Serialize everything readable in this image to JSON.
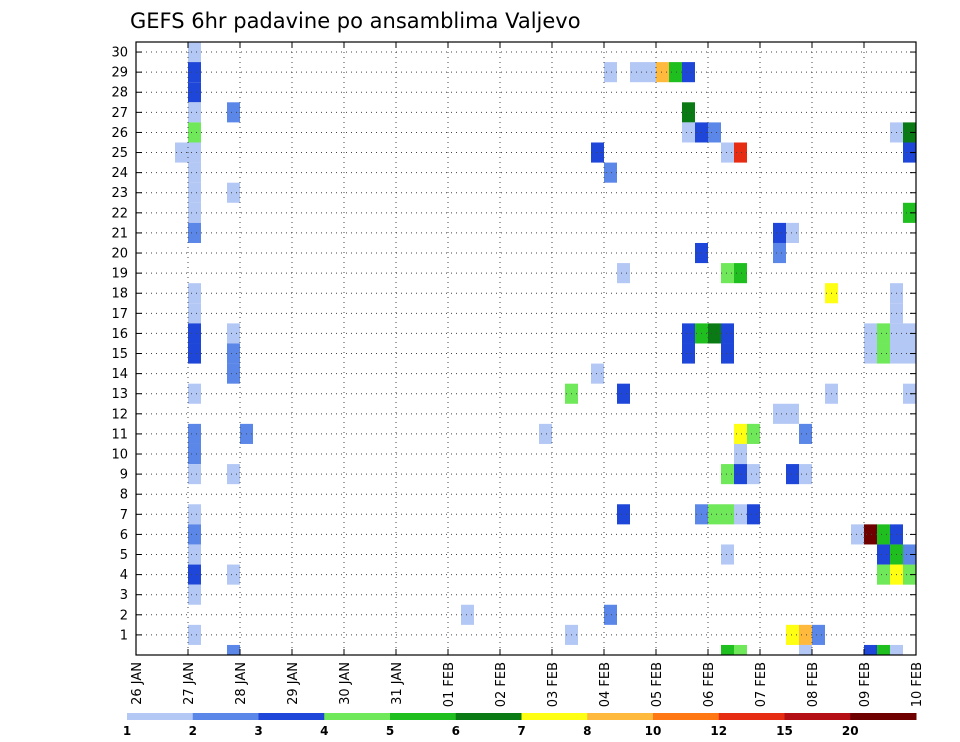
{
  "chart_data": {
    "type": "heatmap",
    "title": "GEFS 6hr padavine po ansamblima Valjevo",
    "xlabel": "",
    "ylabel": "",
    "y_ticks": [
      1,
      2,
      3,
      4,
      5,
      6,
      7,
      8,
      9,
      10,
      11,
      12,
      13,
      14,
      15,
      16,
      17,
      18,
      19,
      20,
      21,
      22,
      23,
      24,
      25,
      26,
      27,
      28,
      29,
      30
    ],
    "ylim": [
      0,
      30
    ],
    "x_tick_labels": [
      "26 JAN",
      "27 JAN",
      "28 JAN",
      "29 JAN",
      "30 JAN",
      "31 JAN",
      "01 FEB",
      "02 FEB",
      "03 FEB",
      "04 FEB",
      "05 FEB",
      "06 FEB",
      "07 FEB",
      "08 FEB",
      "09 FEB",
      "10 FEB"
    ],
    "x_unit": "6-hour step",
    "xlim": [
      0,
      60
    ],
    "grid": true,
    "legend_placement": "bottom",
    "color_levels": [
      {
        "label": "1",
        "color": "#b4c8f5"
      },
      {
        "label": "2",
        "color": "#5b87e8"
      },
      {
        "label": "3",
        "color": "#1e46d8"
      },
      {
        "label": "4",
        "color": "#6fe85a"
      },
      {
        "label": "5",
        "color": "#1fbf1f"
      },
      {
        "label": "6",
        "color": "#0a7a14"
      },
      {
        "label": "7",
        "color": "#ffff14"
      },
      {
        "label": "8",
        "color": "#ffb93c"
      },
      {
        "label": "10",
        "color": "#ff7814"
      },
      {
        "label": "12",
        "color": "#e62d14"
      },
      {
        "label": "15",
        "color": "#b40f14"
      },
      {
        "label": "20",
        "color": "#6e0000"
      }
    ],
    "legend_tick_labels": [
      "1",
      "2",
      "3",
      "4",
      "5",
      "6",
      "7",
      "8",
      "10",
      "12",
      "15",
      "20"
    ],
    "cells": [
      [
        4,
        30,
        0
      ],
      [
        4,
        29,
        2
      ],
      [
        4,
        28,
        2
      ],
      [
        4,
        27,
        0
      ],
      [
        4,
        26,
        3
      ],
      [
        4,
        25,
        0
      ],
      [
        3,
        25,
        0
      ],
      [
        4,
        24,
        0
      ],
      [
        4,
        23,
        0
      ],
      [
        4,
        22,
        0
      ],
      [
        4,
        21,
        1
      ],
      [
        4,
        18,
        0
      ],
      [
        4,
        17,
        0
      ],
      [
        4,
        16,
        2
      ],
      [
        4,
        15,
        2
      ],
      [
        4,
        13,
        0
      ],
      [
        4,
        11,
        1
      ],
      [
        4,
        10,
        1
      ],
      [
        4,
        9,
        0
      ],
      [
        4,
        7,
        0
      ],
      [
        4,
        6,
        1
      ],
      [
        4,
        5,
        0
      ],
      [
        4,
        4,
        2
      ],
      [
        4,
        3,
        0
      ],
      [
        4,
        1,
        0
      ],
      [
        7,
        27,
        1
      ],
      [
        7,
        23,
        0
      ],
      [
        7,
        16,
        0
      ],
      [
        7,
        15,
        1
      ],
      [
        7,
        14,
        1
      ],
      [
        7,
        9,
        0
      ],
      [
        7,
        4,
        0
      ],
      [
        7,
        0,
        1
      ],
      [
        8,
        11,
        1
      ],
      [
        25,
        2,
        0
      ],
      [
        31,
        11,
        0
      ],
      [
        33,
        13,
        3
      ],
      [
        33,
        1,
        0
      ],
      [
        35,
        14,
        0
      ],
      [
        35,
        25,
        2
      ],
      [
        36,
        29,
        0
      ],
      [
        36,
        24,
        1
      ],
      [
        36,
        2,
        1
      ],
      [
        37,
        19,
        0
      ],
      [
        37,
        13,
        2
      ],
      [
        37,
        7,
        2
      ],
      [
        38,
        29,
        0
      ],
      [
        39,
        29,
        0
      ],
      [
        40,
        29,
        7
      ],
      [
        41,
        29,
        4
      ],
      [
        42,
        29,
        2
      ],
      [
        42,
        27,
        5
      ],
      [
        42,
        26,
        0
      ],
      [
        42,
        16,
        2
      ],
      [
        42,
        15,
        2
      ],
      [
        43,
        26,
        2
      ],
      [
        44,
        26,
        1
      ],
      [
        43,
        16,
        4
      ],
      [
        44,
        16,
        5
      ],
      [
        45,
        16,
        2
      ],
      [
        45,
        15,
        2
      ],
      [
        43,
        20,
        2
      ],
      [
        43,
        7,
        1
      ],
      [
        44,
        7,
        3
      ],
      [
        45,
        25,
        0
      ],
      [
        46,
        25,
        9
      ],
      [
        45,
        19,
        3
      ],
      [
        46,
        19,
        4
      ],
      [
        46,
        11,
        6
      ],
      [
        47,
        11,
        3
      ],
      [
        46,
        10,
        0
      ],
      [
        45,
        9,
        3
      ],
      [
        46,
        9,
        2
      ],
      [
        47,
        9,
        0
      ],
      [
        45,
        7,
        3
      ],
      [
        46,
        7,
        0
      ],
      [
        47,
        7,
        2
      ],
      [
        45,
        5,
        0
      ],
      [
        45,
        0,
        4
      ],
      [
        46,
        0,
        3
      ],
      [
        49,
        21,
        2
      ],
      [
        50,
        21,
        0
      ],
      [
        49,
        20,
        1
      ],
      [
        49,
        12,
        0
      ],
      [
        50,
        12,
        0
      ],
      [
        50,
        9,
        2
      ],
      [
        51,
        9,
        0
      ],
      [
        51,
        11,
        1
      ],
      [
        50,
        1,
        6
      ],
      [
        51,
        1,
        7
      ],
      [
        52,
        1,
        1
      ],
      [
        51,
        0,
        0
      ],
      [
        53,
        18,
        6
      ],
      [
        53,
        13,
        0
      ],
      [
        56,
        15,
        0
      ],
      [
        57,
        15,
        3
      ],
      [
        56,
        16,
        0
      ],
      [
        57,
        16,
        3
      ],
      [
        55,
        6,
        0
      ],
      [
        56,
        6,
        11
      ],
      [
        57,
        6,
        4
      ],
      [
        58,
        6,
        2
      ],
      [
        57,
        5,
        2
      ],
      [
        58,
        5,
        4
      ],
      [
        57,
        4,
        3
      ],
      [
        58,
        4,
        6
      ],
      [
        59,
        4,
        3
      ],
      [
        56,
        0,
        2
      ],
      [
        57,
        0,
        4
      ],
      [
        58,
        0,
        0
      ],
      [
        58,
        18,
        0
      ],
      [
        58,
        17,
        0
      ],
      [
        58,
        16,
        0
      ],
      [
        59,
        16,
        0
      ],
      [
        58,
        15,
        0
      ],
      [
        59,
        15,
        0
      ],
      [
        58,
        26,
        0
      ],
      [
        59,
        26,
        5
      ],
      [
        59,
        25,
        2
      ],
      [
        59,
        22,
        4
      ],
      [
        59,
        13,
        0
      ],
      [
        59,
        5,
        1
      ]
    ]
  }
}
